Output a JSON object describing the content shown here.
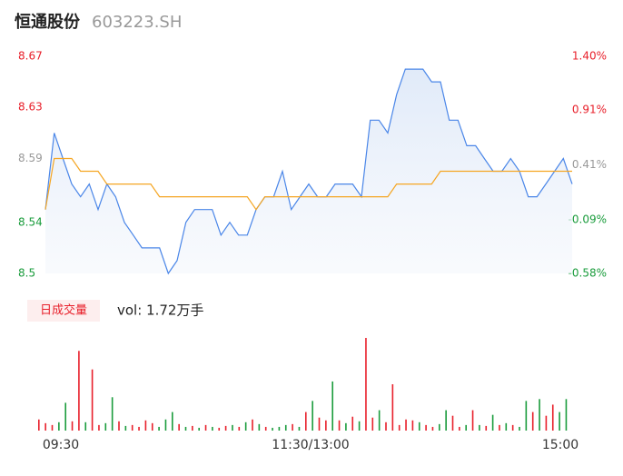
{
  "chart_data": [
    {
      "type": "line",
      "title": "恒通股份",
      "subtitle": "603223.SH",
      "x": [
        0,
        4,
        8,
        12,
        16,
        20,
        24,
        28,
        32,
        36,
        40,
        44,
        48,
        52,
        56,
        60,
        64,
        68,
        72,
        76,
        80,
        84,
        88,
        92,
        96,
        100,
        104,
        108,
        112,
        116,
        120,
        124,
        128,
        132,
        136,
        140,
        144,
        148,
        152,
        156,
        160,
        164,
        168,
        172,
        176,
        180,
        184,
        188,
        192,
        196,
        200,
        204,
        208,
        212,
        216,
        220,
        224,
        228,
        232,
        236,
        240
      ],
      "series": [
        {
          "color": "#4a86e8",
          "values": [
            8.55,
            8.61,
            8.59,
            8.57,
            8.56,
            8.57,
            8.55,
            8.57,
            8.56,
            8.54,
            8.53,
            8.52,
            8.52,
            8.52,
            8.5,
            8.51,
            8.54,
            8.55,
            8.55,
            8.55,
            8.53,
            8.54,
            8.53,
            8.53,
            8.55,
            8.56,
            8.56,
            8.58,
            8.55,
            8.56,
            8.57,
            8.56,
            8.56,
            8.57,
            8.57,
            8.57,
            8.56,
            8.62,
            8.62,
            8.61,
            8.64,
            8.66,
            8.66,
            8.66,
            8.65,
            8.65,
            8.62,
            8.62,
            8.6,
            8.6,
            8.59,
            8.58,
            8.58,
            8.59,
            8.58,
            8.56,
            8.56,
            8.57,
            8.58,
            8.59,
            8.57
          ]
        },
        {
          "color": "#f5a623",
          "values": [
            8.55,
            8.59,
            8.59,
            8.59,
            8.58,
            8.58,
            8.58,
            8.57,
            8.57,
            8.57,
            8.57,
            8.57,
            8.57,
            8.56,
            8.56,
            8.56,
            8.56,
            8.56,
            8.56,
            8.56,
            8.56,
            8.56,
            8.56,
            8.56,
            8.55,
            8.56,
            8.56,
            8.56,
            8.56,
            8.56,
            8.56,
            8.56,
            8.56,
            8.56,
            8.56,
            8.56,
            8.56,
            8.56,
            8.56,
            8.56,
            8.57,
            8.57,
            8.57,
            8.57,
            8.57,
            8.58,
            8.58,
            8.58,
            8.58,
            8.58,
            8.58,
            8.58,
            8.58,
            8.58,
            8.58,
            8.58,
            8.58,
            8.58,
            8.58,
            8.58,
            8.58
          ]
        }
      ],
      "xlim": [
        0,
        240
      ],
      "ylim": [
        8.5,
        8.67
      ],
      "yticks": [
        8.67,
        8.63,
        8.59,
        8.54,
        8.5
      ],
      "ytick_colors": [
        "#e8202b",
        "#e8202b",
        "#999999",
        "#1a9c3c",
        "#1a9c3c"
      ],
      "y2lim": [
        -0.58,
        1.4
      ],
      "y2ticks": [
        {
          "value": 1.4,
          "label": "1.40%"
        },
        {
          "value": 0.91,
          "label": "0.91%"
        },
        {
          "value": 0.41,
          "label": "0.41%"
        },
        {
          "value": -0.09,
          "label": "-0.09%"
        },
        {
          "value": -0.58,
          "label": "-0.58%"
        }
      ],
      "y2tick_colors": [
        "#e8202b",
        "#e8202b",
        "#999999",
        "#1a9c3c",
        "#1a9c3c"
      ]
    },
    {
      "type": "bar",
      "title": "日成交量",
      "subtitle": "vol: 1.72万手",
      "x": [
        0,
        3,
        6,
        9,
        12,
        15,
        18,
        21,
        24,
        27,
        30,
        33,
        36,
        39,
        42,
        45,
        48,
        51,
        54,
        57,
        60,
        63,
        66,
        69,
        72,
        75,
        78,
        81,
        84,
        87,
        90,
        93,
        96,
        99,
        102,
        105,
        108,
        111,
        114,
        117,
        120,
        123,
        126,
        129,
        132,
        135,
        138,
        141,
        144,
        147,
        150,
        153,
        156,
        159,
        162,
        165,
        168,
        171,
        174,
        177,
        180,
        183,
        186,
        189,
        192,
        195,
        198,
        201,
        204,
        207,
        210,
        213,
        216,
        219,
        222,
        225,
        228,
        231,
        234,
        237
      ],
      "values": [
        120,
        80,
        60,
        90,
        300,
        100,
        860,
        90,
        660,
        60,
        80,
        360,
        100,
        50,
        60,
        40,
        110,
        80,
        40,
        120,
        200,
        70,
        40,
        50,
        30,
        60,
        40,
        30,
        50,
        60,
        40,
        90,
        120,
        70,
        40,
        30,
        40,
        60,
        70,
        40,
        200,
        320,
        140,
        110,
        530,
        110,
        80,
        150,
        100,
        1000,
        140,
        220,
        90,
        500,
        60,
        120,
        110,
        90,
        60,
        40,
        70,
        220,
        160,
        40,
        60,
        220,
        60,
        50,
        170,
        60,
        80,
        60,
        40,
        320,
        200,
        340,
        160,
        280,
        200,
        340
      ],
      "up": [
        true,
        true,
        true,
        false,
        false,
        true,
        true,
        false,
        true,
        true,
        false,
        false,
        true,
        false,
        true,
        true,
        true,
        true,
        false,
        false,
        false,
        true,
        false,
        true,
        false,
        true,
        false,
        true,
        true,
        false,
        true,
        false,
        true,
        false,
        true,
        false,
        false,
        false,
        true,
        false,
        true,
        false,
        true,
        true,
        false,
        true,
        false,
        true,
        false,
        true,
        true,
        false,
        true,
        true,
        true,
        true,
        true,
        false,
        true,
        true,
        false,
        false,
        true,
        true,
        false,
        true,
        false,
        true,
        false,
        true,
        false,
        true,
        false,
        false,
        true,
        false,
        true,
        true,
        false,
        false
      ],
      "colors": {
        "up": "#e8202b",
        "down": "#1a9c3c"
      },
      "xticks": [
        {
          "value": 0,
          "label": "09:30"
        },
        {
          "value": 120,
          "label": "11:30/13:00"
        },
        {
          "value": 240,
          "label": "15:00"
        }
      ]
    }
  ]
}
